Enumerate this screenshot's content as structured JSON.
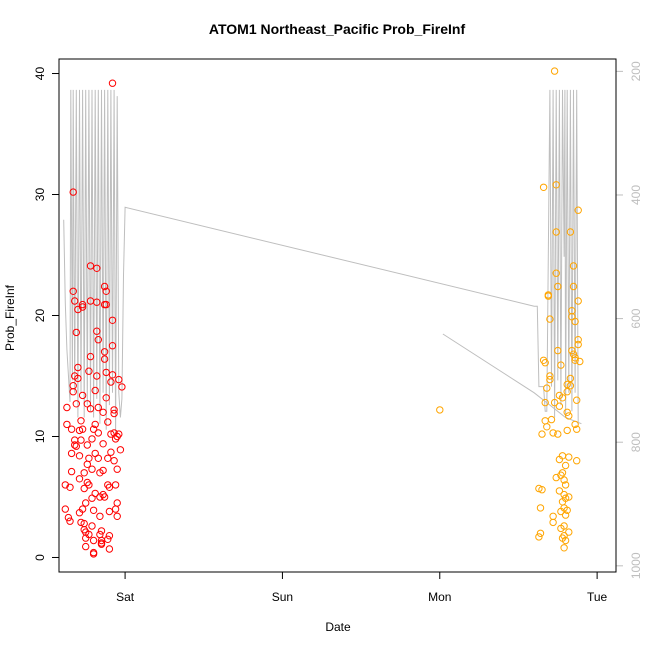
{
  "chart_data": {
    "type": "scatter",
    "title": "ATOM1 Northeast_Pacific Prob_FireInf",
    "xlabel": "Date",
    "ylabel": "Prob_FireInf",
    "xlim": [
      -0.42,
      3.12
    ],
    "ylim": [
      -1.2,
      41.2
    ],
    "x_ticks": [
      {
        "x": 0,
        "label": "Sat"
      },
      {
        "x": 1,
        "label": "Sun"
      },
      {
        "x": 2,
        "label": "Mon"
      },
      {
        "x": 3,
        "label": "Tue"
      }
    ],
    "y_ticks": [
      0,
      10,
      20,
      30,
      40
    ],
    "secondary_axis": {
      "position": "right",
      "reversed": true,
      "range": [
        180,
        1010
      ],
      "ticks": [
        200,
        400,
        600,
        800,
        1000
      ],
      "color": "#bebebe"
    },
    "grid": false,
    "series": [
      {
        "color": "#ff0000",
        "points": [
          [
            -0.38,
            4.0
          ],
          [
            -0.38,
            6.0
          ],
          [
            -0.37,
            11.0
          ],
          [
            -0.37,
            12.4
          ],
          [
            -0.36,
            3.3
          ],
          [
            -0.35,
            3.0
          ],
          [
            -0.35,
            5.8
          ],
          [
            -0.34,
            7.1
          ],
          [
            -0.34,
            8.6
          ],
          [
            -0.34,
            10.6
          ],
          [
            -0.33,
            13.7
          ],
          [
            -0.33,
            14.2
          ],
          [
            -0.33,
            30.2
          ],
          [
            -0.33,
            22.0
          ],
          [
            -0.32,
            21.2
          ],
          [
            -0.32,
            15.0
          ],
          [
            -0.32,
            9.7
          ],
          [
            -0.31,
            12.7
          ],
          [
            -0.31,
            9.2
          ],
          [
            -0.31,
            18.6
          ],
          [
            -0.3,
            20.5
          ],
          [
            -0.3,
            15.7
          ],
          [
            -0.3,
            14.8
          ],
          [
            -0.29,
            10.5
          ],
          [
            -0.29,
            8.4
          ],
          [
            -0.29,
            6.5
          ],
          [
            -0.29,
            3.7
          ],
          [
            -0.28,
            2.9
          ],
          [
            -0.28,
            11.3
          ],
          [
            -0.28,
            9.7
          ],
          [
            -0.27,
            20.7
          ],
          [
            -0.27,
            20.9
          ],
          [
            -0.27,
            13.4
          ],
          [
            -0.27,
            10.6
          ],
          [
            -0.26,
            7.0
          ],
          [
            -0.26,
            5.7
          ],
          [
            -0.26,
            2.3
          ],
          [
            -0.26,
            2.8
          ],
          [
            -0.25,
            1.6
          ],
          [
            -0.25,
            0.9
          ],
          [
            -0.25,
            2.1
          ],
          [
            -0.25,
            4.5
          ],
          [
            -0.24,
            6.2
          ],
          [
            -0.24,
            7.7
          ],
          [
            -0.24,
            9.3
          ],
          [
            -0.24,
            12.7
          ],
          [
            -0.23,
            15.4
          ],
          [
            -0.23,
            8.2
          ],
          [
            -0.23,
            6.0
          ],
          [
            -0.22,
            24.1
          ],
          [
            -0.22,
            21.2
          ],
          [
            -0.22,
            16.6
          ],
          [
            -0.22,
            12.3
          ],
          [
            -0.21,
            9.8
          ],
          [
            -0.21,
            7.3
          ],
          [
            -0.21,
            4.9
          ],
          [
            -0.21,
            2.6
          ],
          [
            -0.2,
            0.3
          ],
          [
            -0.2,
            0.4
          ],
          [
            -0.2,
            1.4
          ],
          [
            -0.2,
            3.9
          ],
          [
            -0.19,
            5.3
          ],
          [
            -0.19,
            8.6
          ],
          [
            -0.19,
            11.0
          ],
          [
            -0.19,
            13.8
          ],
          [
            -0.18,
            15.0
          ],
          [
            -0.18,
            18.7
          ],
          [
            -0.18,
            23.9
          ],
          [
            -0.18,
            21.1
          ],
          [
            -0.17,
            18.0
          ],
          [
            -0.17,
            12.4
          ],
          [
            -0.17,
            10.3
          ],
          [
            -0.17,
            8.2
          ],
          [
            -0.16,
            7.0
          ],
          [
            -0.16,
            5.0
          ],
          [
            -0.16,
            3.4
          ],
          [
            -0.16,
            1.9
          ],
          [
            -0.15,
            1.1
          ],
          [
            -0.15,
            1.4
          ],
          [
            -0.15,
            1.2
          ],
          [
            -0.15,
            2.2
          ],
          [
            -0.14,
            5.2
          ],
          [
            -0.14,
            7.2
          ],
          [
            -0.14,
            9.4
          ],
          [
            -0.14,
            12.0
          ],
          [
            -0.13,
            17.0
          ],
          [
            -0.13,
            16.4
          ],
          [
            -0.13,
            22.4
          ],
          [
            -0.13,
            20.9
          ],
          [
            -0.12,
            20.9
          ],
          [
            -0.12,
            22.0
          ],
          [
            -0.12,
            15.3
          ],
          [
            -0.12,
            13.2
          ],
          [
            -0.11,
            11.2
          ],
          [
            -0.11,
            8.2
          ],
          [
            -0.11,
            6.0
          ],
          [
            -0.11,
            1.5
          ],
          [
            -0.1,
            0.7
          ],
          [
            -0.1,
            1.8
          ],
          [
            -0.1,
            3.8
          ],
          [
            -0.1,
            5.8
          ],
          [
            -0.09,
            8.7
          ],
          [
            -0.09,
            10.2
          ],
          [
            -0.09,
            14.5
          ],
          [
            -0.08,
            17.5
          ],
          [
            -0.08,
            19.6
          ],
          [
            -0.08,
            39.2
          ],
          [
            -0.08,
            15.1
          ],
          [
            -0.07,
            12.2
          ],
          [
            -0.07,
            11.9
          ],
          [
            -0.07,
            10.3
          ],
          [
            -0.07,
            8.0
          ],
          [
            -0.06,
            6.0
          ],
          [
            -0.06,
            4.0
          ],
          [
            -0.05,
            4.5
          ],
          [
            -0.05,
            3.4
          ],
          [
            -0.05,
            10.0
          ],
          [
            -0.04,
            14.7
          ],
          [
            -0.04,
            10.2
          ],
          [
            -0.03,
            8.9
          ],
          [
            -0.02,
            14.1
          ],
          [
            -0.06,
            9.8
          ],
          [
            -0.05,
            7.3
          ],
          [
            -0.13,
            5.0
          ],
          [
            -0.2,
            10.6
          ],
          [
            -0.27,
            4.0
          ],
          [
            -0.32,
            9.3
          ],
          [
            -0.23,
            1.9
          ]
        ]
      },
      {
        "color": "#ffa500",
        "points": [
          [
            2.0,
            12.2
          ],
          [
            2.63,
            5.7
          ],
          [
            2.63,
            1.7
          ],
          [
            2.64,
            2.0
          ],
          [
            2.64,
            4.1
          ],
          [
            2.65,
            10.2
          ],
          [
            2.65,
            5.6
          ],
          [
            2.66,
            30.6
          ],
          [
            2.66,
            16.3
          ],
          [
            2.67,
            16.1
          ],
          [
            2.67,
            11.3
          ],
          [
            2.67,
            12.8
          ],
          [
            2.68,
            14.0
          ],
          [
            2.68,
            10.8
          ],
          [
            2.69,
            21.6
          ],
          [
            2.69,
            21.7
          ],
          [
            2.7,
            19.7
          ],
          [
            2.7,
            14.7
          ],
          [
            2.7,
            15.0
          ],
          [
            2.71,
            11.4
          ],
          [
            2.72,
            10.3
          ],
          [
            2.72,
            2.9
          ],
          [
            2.72,
            3.4
          ],
          [
            2.73,
            12.8
          ],
          [
            2.73,
            40.2
          ],
          [
            2.74,
            30.8
          ],
          [
            2.74,
            26.9
          ],
          [
            2.74,
            23.5
          ],
          [
            2.75,
            22.4
          ],
          [
            2.75,
            17.1
          ],
          [
            2.75,
            10.2
          ],
          [
            2.76,
            13.4
          ],
          [
            2.76,
            8.1
          ],
          [
            2.76,
            5.5
          ],
          [
            2.77,
            15.9
          ],
          [
            2.77,
            6.8
          ],
          [
            2.77,
            3.8
          ],
          [
            2.77,
            2.4
          ],
          [
            2.78,
            1.6
          ],
          [
            2.78,
            4.6
          ],
          [
            2.78,
            8.4
          ],
          [
            2.79,
            6.4
          ],
          [
            2.79,
            5.2
          ],
          [
            2.79,
            4.1
          ],
          [
            2.79,
            1.8
          ],
          [
            2.79,
            0.8
          ],
          [
            2.8,
            1.4
          ],
          [
            2.8,
            3.5
          ],
          [
            2.8,
            4.9
          ],
          [
            2.8,
            7.6
          ],
          [
            2.81,
            10.5
          ],
          [
            2.81,
            13.7
          ],
          [
            2.81,
            14.3
          ],
          [
            2.81,
            12.0
          ],
          [
            2.82,
            11.7
          ],
          [
            2.82,
            8.3
          ],
          [
            2.82,
            5.0
          ],
          [
            2.82,
            2.1
          ],
          [
            2.83,
            14.2
          ],
          [
            2.83,
            14.8
          ],
          [
            2.83,
            26.9
          ],
          [
            2.84,
            20.4
          ],
          [
            2.84,
            19.9
          ],
          [
            2.84,
            17.1
          ],
          [
            2.85,
            24.1
          ],
          [
            2.85,
            22.4
          ],
          [
            2.85,
            16.8
          ],
          [
            2.86,
            16.5
          ],
          [
            2.86,
            19.5
          ],
          [
            2.86,
            16.3
          ],
          [
            2.86,
            11.0
          ],
          [
            2.87,
            13.0
          ],
          [
            2.87,
            10.6
          ],
          [
            2.87,
            8.0
          ],
          [
            2.88,
            28.7
          ],
          [
            2.88,
            21.2
          ],
          [
            2.88,
            18.0
          ],
          [
            2.88,
            17.6
          ],
          [
            2.89,
            16.2
          ],
          [
            2.81,
            3.9
          ],
          [
            2.79,
            2.6
          ],
          [
            2.78,
            7.0
          ],
          [
            2.76,
            12.5
          ],
          [
            2.74,
            6.6
          ],
          [
            2.8,
            6.0
          ],
          [
            2.78,
            13.2
          ]
        ]
      }
    ],
    "secondary_line": {
      "color": "#bebebe",
      "segments": [
        [
          [
            -0.39,
            440
          ],
          [
            -0.38,
            575
          ],
          [
            -0.37,
            650
          ],
          [
            -0.35,
            735
          ],
          [
            -0.345,
            230
          ],
          [
            -0.335,
            700
          ],
          [
            -0.33,
            230
          ],
          [
            -0.32,
            720
          ],
          [
            -0.31,
            230
          ],
          [
            -0.3,
            760
          ],
          [
            -0.29,
            230
          ],
          [
            -0.28,
            720
          ],
          [
            -0.27,
            230
          ],
          [
            -0.26,
            760
          ],
          [
            -0.25,
            230
          ],
          [
            -0.24,
            740
          ],
          [
            -0.23,
            230
          ],
          [
            -0.22,
            750
          ],
          [
            -0.21,
            230
          ],
          [
            -0.2,
            760
          ],
          [
            -0.19,
            230
          ],
          [
            -0.18,
            730
          ],
          [
            -0.17,
            230
          ],
          [
            -0.16,
            770
          ],
          [
            -0.15,
            230
          ],
          [
            -0.14,
            720
          ],
          [
            -0.13,
            230
          ],
          [
            -0.12,
            780
          ],
          [
            -0.11,
            230
          ],
          [
            -0.1,
            740
          ],
          [
            -0.09,
            230
          ],
          [
            -0.08,
            720
          ],
          [
            -0.07,
            230
          ],
          [
            -0.06,
            790
          ],
          [
            -0.05,
            240
          ],
          [
            -0.04,
            720
          ],
          [
            -0.03,
            760
          ],
          [
            -0.02,
            730
          ],
          [
            -0.01,
            530
          ],
          [
            0.0,
            420
          ],
          [
            2.6,
            580
          ],
          [
            2.62,
            580
          ],
          [
            2.63,
            710
          ],
          [
            2.64,
            710
          ],
          [
            2.66,
            710
          ],
          [
            2.67,
            750
          ],
          [
            2.68,
            750
          ],
          [
            2.7,
            230
          ],
          [
            2.71,
            710
          ],
          [
            2.72,
            230
          ],
          [
            2.73,
            760
          ],
          [
            2.74,
            230
          ],
          [
            2.75,
            700
          ],
          [
            2.76,
            230
          ],
          [
            2.77,
            740
          ],
          [
            2.78,
            230
          ],
          [
            2.79,
            500
          ],
          [
            2.795,
            230
          ],
          [
            2.8,
            760
          ],
          [
            2.81,
            230
          ],
          [
            2.82,
            720
          ],
          [
            2.83,
            230
          ],
          [
            2.84,
            750
          ],
          [
            2.85,
            230
          ],
          [
            2.86,
            720
          ],
          [
            2.87,
            230
          ],
          [
            2.88,
            770
          ]
        ],
        [
          [
            2.02,
            625
          ],
          [
            2.6,
            720
          ],
          [
            2.7,
            740
          ],
          [
            2.8,
            760
          ],
          [
            2.9,
            770
          ]
        ]
      ]
    }
  }
}
